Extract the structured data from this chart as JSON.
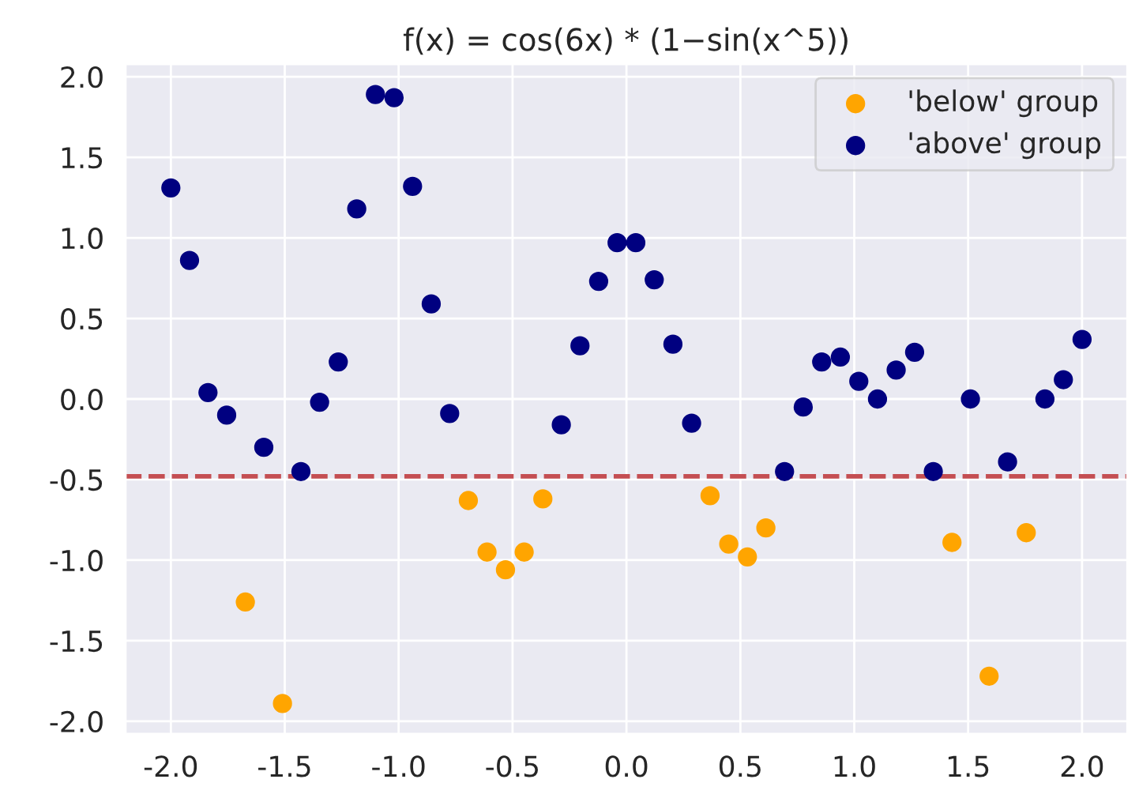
{
  "chart_data": {
    "type": "scatter",
    "title": "f(x) = cos(6x) * (1−sin(x^5))",
    "series": [
      {
        "name": "'below' group",
        "color": "#ffa500",
        "x": [
          -1.673,
          -1.51,
          -0.694,
          -0.612,
          -0.531,
          -0.449,
          -0.367,
          0.367,
          0.449,
          0.531,
          0.612,
          1.429,
          1.592,
          1.755
        ],
        "values": [
          -1.26,
          -1.89,
          -0.63,
          -0.95,
          -1.06,
          -0.95,
          -0.62,
          -0.6,
          -0.9,
          -0.98,
          -0.8,
          -0.89,
          -1.72,
          -0.83
        ]
      },
      {
        "name": "'above' group",
        "color": "#000080",
        "x": [
          -2.0,
          -1.918,
          -1.837,
          -1.755,
          -1.592,
          -1.429,
          -1.347,
          -1.265,
          -1.184,
          -1.102,
          -1.02,
          -0.939,
          -0.857,
          -0.776,
          -0.286,
          -0.204,
          -0.122,
          -0.041,
          0.041,
          0.122,
          0.204,
          0.286,
          0.694,
          0.776,
          0.857,
          0.939,
          1.02,
          1.102,
          1.184,
          1.265,
          1.347,
          1.51,
          1.673,
          1.837,
          1.918,
          2.0
        ],
        "values": [
          1.31,
          0.86,
          0.04,
          -0.1,
          -0.3,
          -0.45,
          -0.02,
          0.23,
          1.18,
          1.89,
          1.87,
          1.32,
          0.59,
          -0.09,
          -0.16,
          0.33,
          0.73,
          0.97,
          0.97,
          0.74,
          0.34,
          -0.15,
          -0.45,
          -0.05,
          0.23,
          0.26,
          0.11,
          0.0,
          0.18,
          0.29,
          -0.45,
          0.0,
          -0.39,
          0.0,
          0.12,
          0.37
        ]
      }
    ],
    "ref_lines": [
      {
        "axis": "y",
        "value": -0.48,
        "color": "#c44e52",
        "line_style": "dashed"
      }
    ],
    "xlim": [
      -2.2,
      2.2
    ],
    "ylim": [
      -2.08,
      2.08
    ],
    "xticks": [
      {
        "value": -2,
        "label": "-2.0"
      },
      -1.5,
      {
        "value": -1,
        "label": "-1.0"
      },
      -0.5,
      {
        "value": 0,
        "label": "0.0"
      },
      0.5,
      {
        "value": 1,
        "label": "1.0"
      },
      1.5,
      {
        "value": 2,
        "label": "2.0"
      }
    ],
    "yticks": [
      {
        "value": -2,
        "label": "-2.0"
      },
      -1.5,
      {
        "value": -1,
        "label": "-1.0"
      },
      -0.5,
      {
        "value": 0,
        "label": "0.0"
      },
      0.5,
      {
        "value": 1,
        "label": "1.0"
      },
      1.5,
      {
        "value": 2,
        "label": "2.0"
      }
    ],
    "grid": true,
    "legend": "top right",
    "marker": "circle"
  }
}
